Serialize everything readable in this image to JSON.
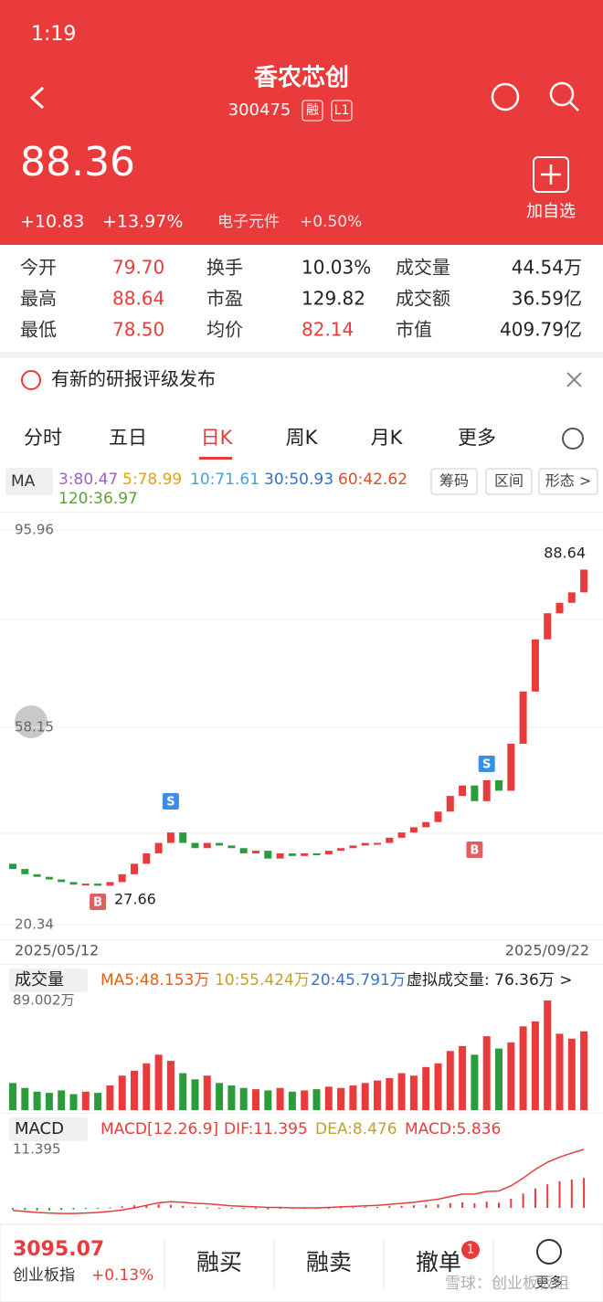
{
  "status": {
    "time": "1:19"
  },
  "header": {
    "title": "香农芯创",
    "code": "300475",
    "tags": [
      "融",
      "L1"
    ],
    "price": "88.36",
    "change": "+10.83",
    "change_pct": "+13.97%",
    "sector": "电子元件",
    "sector_change": "+0.50%",
    "add_watch": "加自选"
  },
  "stats": [
    {
      "label": "今开",
      "value": "79.70"
    },
    {
      "label": "换手",
      "value": "10.03%"
    },
    {
      "label": "成交量",
      "value": "44.54万"
    },
    {
      "label": "最高",
      "value": "88.64"
    },
    {
      "label": "市盈",
      "value": "129.82"
    },
    {
      "label": "成交额",
      "value": "36.59亿"
    },
    {
      "label": "最低",
      "value": "78.50"
    },
    {
      "label": "均价",
      "value": "82.14"
    },
    {
      "label": "市值",
      "value": "409.79亿"
    }
  ],
  "notice": "有新的研报评级发布",
  "tabs": [
    "分时",
    "五日",
    "日K",
    "周K",
    "月K",
    "更多"
  ],
  "ma": {
    "label": "MA",
    "items": [
      "3:80.47",
      "5:78.99",
      "10:71.61",
      "30:50.93",
      "60:42.62",
      "120:36.97"
    ],
    "buttons": [
      "筹码",
      "区间",
      "形态 >"
    ]
  },
  "kline": {
    "ylim": [
      20.34,
      95.96
    ],
    "yticks": [
      20.34,
      58.15,
      95.96
    ],
    "high_label": "88.64",
    "low_label": "27.66",
    "dates": [
      "2025/05/12",
      "2025/09/22"
    ],
    "signals": [
      "S",
      "B",
      "S",
      "B"
    ],
    "closes": [
      31,
      30,
      29.5,
      29,
      28.5,
      28,
      28.2,
      27.8,
      28.5,
      30,
      32,
      34,
      36,
      38,
      36,
      35,
      36,
      35.5,
      35,
      34,
      34.5,
      33,
      34,
      33.5,
      34,
      33.8,
      34.5,
      35,
      35.5,
      36,
      36,
      37,
      38,
      39,
      40,
      42,
      45,
      47,
      44,
      48,
      46,
      55,
      65,
      75,
      80,
      82,
      84,
      88.36
    ]
  },
  "volume": {
    "label": "成交量",
    "ma": [
      "MA5:48.153万",
      "10:55.424万",
      "20:45.791万"
    ],
    "virtual": "虚拟成交量:  76.36万 >",
    "max_label": "89.002万",
    "ylim": [
      0,
      89.002
    ],
    "values": [
      22,
      18,
      15,
      14,
      16,
      13,
      15,
      14,
      20,
      28,
      32,
      38,
      45,
      40,
      30,
      25,
      28,
      22,
      20,
      18,
      17,
      16,
      18,
      15,
      16,
      17,
      19,
      18,
      20,
      22,
      24,
      26,
      30,
      28,
      35,
      38,
      48,
      52,
      45,
      60,
      50,
      55,
      68,
      72,
      89.002,
      62,
      58,
      64
    ]
  },
  "macd": {
    "label": "MACD",
    "params": "MACD[12.26.9]",
    "dif_label": "DIF:11.395",
    "dea_label": "DEA:8.476",
    "macd_label": "MACD:5.836",
    "top_label": "11.395",
    "top": 11.395,
    "hist": [
      -0.3,
      -0.4,
      -0.5,
      -0.5,
      -0.4,
      -0.3,
      -0.2,
      -0.1,
      0.1,
      0.3,
      0.5,
      0.6,
      0.7,
      0.6,
      0.4,
      0.2,
      0.1,
      0,
      -0.1,
      -0.2,
      -0.2,
      -0.3,
      -0.2,
      -0.2,
      -0.1,
      -0.1,
      0,
      0.1,
      0.1,
      0.2,
      0.2,
      0.3,
      0.4,
      0.5,
      0.6,
      0.7,
      0.9,
      1.1,
      0.9,
      1.2,
      1.0,
      1.8,
      2.8,
      3.8,
      4.6,
      5.2,
      5.5,
      5.836
    ],
    "dif": [
      -0.5,
      -0.7,
      -0.9,
      -1,
      -1.1,
      -1.1,
      -1,
      -0.9,
      -0.7,
      -0.4,
      0,
      0.5,
      1,
      1.2,
      1.1,
      0.9,
      0.8,
      0.6,
      0.4,
      0.3,
      0.2,
      0.1,
      0.1,
      0,
      0,
      0,
      0.1,
      0.2,
      0.3,
      0.4,
      0.5,
      0.7,
      0.9,
      1.1,
      1.4,
      1.7,
      2.2,
      2.7,
      2.7,
      3.2,
      3.3,
      4.3,
      5.8,
      7.5,
      8.9,
      9.9,
      10.7,
      11.395
    ]
  },
  "bottom": {
    "index_value": "3095.07",
    "index_name": "创业板指",
    "index_change": "+0.13%",
    "actions": [
      "融买",
      "融卖",
      "撤单",
      "更多"
    ],
    "badge": "1",
    "watermark": "雪球：创业板板姐"
  }
}
